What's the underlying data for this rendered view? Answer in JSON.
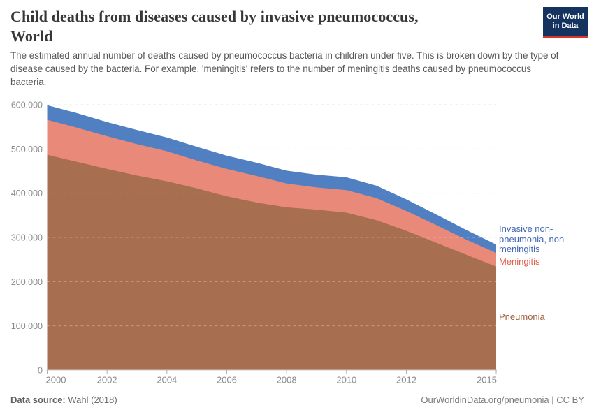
{
  "header": {
    "title_line1": "Child deaths from diseases caused by invasive pneumococcus,",
    "title_line2": "World",
    "subtitle": "The estimated annual number of deaths caused by pneumococcus bacteria in children under five. This is broken down by the type of disease caused by the bacteria. For example, 'meningitis' refers to the number of meningitis deaths caused by pneumococcus bacteria.",
    "logo": {
      "line1": "Our World",
      "line2": "in Data",
      "bg_color": "#14335e",
      "accent_color": "#d8362a"
    }
  },
  "chart_data": {
    "type": "area",
    "stacked": true,
    "title": "Child deaths from diseases caused by invasive pneumococcus, World",
    "x": [
      2000,
      2001,
      2002,
      2003,
      2004,
      2005,
      2006,
      2007,
      2008,
      2009,
      2010,
      2011,
      2012,
      2013,
      2014,
      2015
    ],
    "series": [
      {
        "name": "Pneumonia",
        "color": "#a76e4f",
        "label_color": "#9e5e3e",
        "values": [
          487000,
          471000,
          455000,
          440000,
          427000,
          411000,
          393000,
          379000,
          368000,
          363000,
          356000,
          339000,
          315000,
          288000,
          261000,
          234000
        ]
      },
      {
        "name": "Meningitis",
        "color": "#e8897a",
        "label_color": "#e0604a",
        "values": [
          79000,
          77000,
          74000,
          71000,
          68000,
          63000,
          62000,
          60000,
          54000,
          50000,
          51000,
          50000,
          45000,
          40000,
          34000,
          31000
        ]
      },
      {
        "name": "Invasive non-pneumonia, non-meningitis",
        "color": "#5180c2",
        "label_color": "#4268b3",
        "values": [
          33000,
          33000,
          32000,
          32000,
          31000,
          31000,
          30000,
          30000,
          29000,
          29000,
          29000,
          28000,
          26000,
          24000,
          22000,
          19000
        ]
      }
    ],
    "ylim": [
      0,
      600000
    ],
    "yticks": [
      0,
      100000,
      200000,
      300000,
      400000,
      500000,
      600000
    ],
    "ytick_labels": [
      "0",
      "100,000",
      "200,000",
      "300,000",
      "400,000",
      "500,000",
      "600,000"
    ],
    "xticks": [
      2000,
      2002,
      2004,
      2006,
      2008,
      2010,
      2012,
      2015
    ],
    "grid": "dashed",
    "legend_position": "right"
  },
  "footer": {
    "source_label": "Data source:",
    "source_value": "Wahl (2018)",
    "attribution": "OurWorldinData.org/pneumonia | CC BY"
  }
}
